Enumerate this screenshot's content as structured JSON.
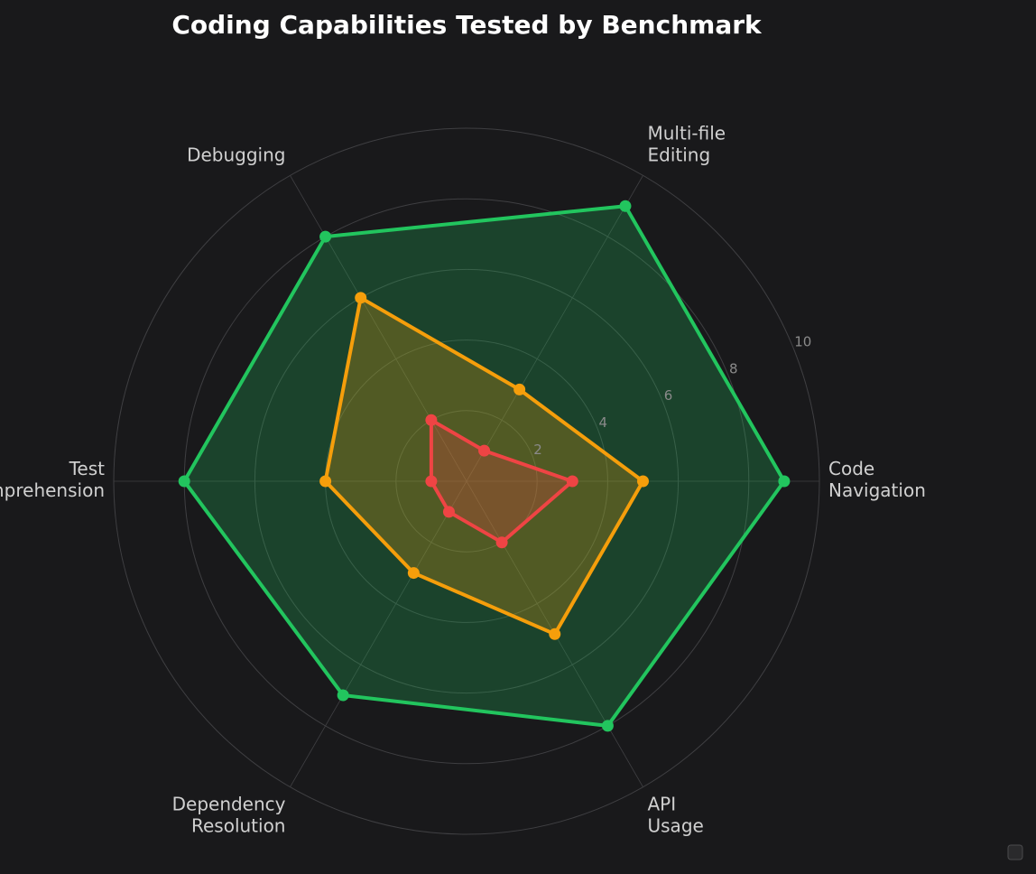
{
  "chart_data": {
    "type": "radar",
    "title": "Coding Capabilities Tested by Benchmark",
    "axes": [
      [
        "Code",
        "Navigation"
      ],
      [
        "Multi-file",
        "Editing"
      ],
      [
        "Debugging"
      ],
      [
        "Test",
        "Comprehension"
      ],
      [
        "Dependency",
        "Resolution"
      ],
      [
        "API",
        "Usage"
      ]
    ],
    "rlim": [
      0,
      10
    ],
    "rticks": [
      2,
      4,
      6,
      8,
      10
    ],
    "grid": true,
    "legend": "bottom-right",
    "series": [
      {
        "color": "#22c55e",
        "values": [
          9,
          9,
          8,
          8,
          7,
          8
        ]
      },
      {
        "color": "#f59e0b",
        "values": [
          5,
          3,
          6,
          4,
          3,
          5
        ]
      },
      {
        "color": "#ef4444",
        "values": [
          3,
          1,
          2,
          1,
          1,
          2
        ]
      }
    ],
    "colors": {
      "background": "#19191b",
      "grid": "#3f3f42",
      "text": "#d0d0d0",
      "tick": "#8a8a8a"
    }
  }
}
